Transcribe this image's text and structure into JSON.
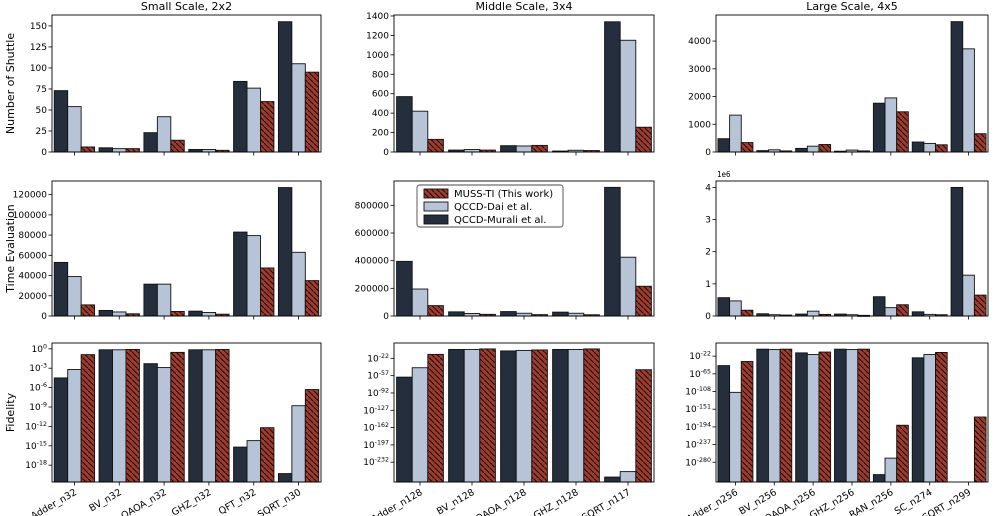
{
  "figure": {
    "column_titles": [
      "Small Scale, 2x2",
      "Middle Scale, 3x4",
      "Large Scale, 4x5"
    ],
    "row_ylabels": [
      "Number of Shuttle",
      "Time Evaluation",
      "Fidelity"
    ]
  },
  "series_style": {
    "muss_ti": {
      "color": "#a23b2e",
      "hatch": true
    },
    "qccd_dai": {
      "color": "#b7c3d6",
      "hatch": false
    },
    "qccd_murali": {
      "color": "#242e3c",
      "hatch": false
    }
  },
  "legend": {
    "host_chart": 4,
    "items": [
      {
        "key": "muss_ti",
        "label": "MUSS-TI (This work)"
      },
      {
        "key": "qccd_dai",
        "label": "QCCD-Dai et al."
      },
      {
        "key": "qccd_murali",
        "label": "QCCD-Murali et al."
      }
    ]
  },
  "chart_data": [
    {
      "id": "shuttle-small",
      "type": "bar",
      "scale": "linear",
      "title": "Small Scale, 2x2",
      "ylabel": "Number of Shuttle",
      "offset_text": "",
      "categories": [
        "Adder_n32",
        "BV_n32",
        "QAOA_n32",
        "GHZ_n32",
        "QFT_n32",
        "SQRT_n30"
      ],
      "show_xticklabels": false,
      "ylim": [
        0,
        163
      ],
      "yticks": [
        0,
        25,
        50,
        75,
        100,
        125,
        150
      ],
      "ytick_labels": [
        "0",
        "25",
        "50",
        "75",
        "100",
        "125",
        "150"
      ],
      "series": [
        {
          "key": "qccd_murali",
          "name": "QCCD-Murali et al.",
          "values": [
            73,
            5,
            23,
            3,
            84,
            155
          ]
        },
        {
          "key": "qccd_dai",
          "name": "QCCD-Dai et al.",
          "values": [
            54,
            4,
            42,
            3,
            76,
            105
          ]
        },
        {
          "key": "muss_ti",
          "name": "MUSS-TI (This work)",
          "values": [
            6,
            4,
            14,
            2,
            60,
            95
          ]
        }
      ]
    },
    {
      "id": "shuttle-middle",
      "type": "bar",
      "scale": "linear",
      "title": "Middle Scale, 3x4",
      "ylabel": "",
      "offset_text": "",
      "categories": [
        "Adder_n128",
        "BV_n128",
        "QAOA_n128",
        "GHZ_n128",
        "SQRT_n117"
      ],
      "show_xticklabels": false,
      "ylim": [
        0,
        1410
      ],
      "yticks": [
        0,
        200,
        400,
        600,
        800,
        1000,
        1200,
        1400
      ],
      "ytick_labels": [
        "0",
        "200",
        "400",
        "600",
        "800",
        "1000",
        "1200",
        "1400"
      ],
      "series": [
        {
          "key": "qccd_murali",
          "name": "QCCD-Murali et al.",
          "values": [
            570,
            20,
            65,
            10,
            1340
          ]
        },
        {
          "key": "qccd_dai",
          "name": "QCCD-Dai et al.",
          "values": [
            420,
            25,
            62,
            18,
            1150
          ]
        },
        {
          "key": "muss_ti",
          "name": "MUSS-TI (This work)",
          "values": [
            130,
            20,
            68,
            15,
            255
          ]
        }
      ]
    },
    {
      "id": "shuttle-large",
      "type": "bar",
      "scale": "linear",
      "title": "Large Scale, 4x5",
      "ylabel": "",
      "offset_text": "",
      "categories": [
        "Adder_n256",
        "BV_n256",
        "QAOA_n256",
        "GHZ_n256",
        "RAN_n256",
        "SC_n274",
        "SQRT_n299"
      ],
      "show_xticklabels": false,
      "ylim": [
        0,
        4940
      ],
      "yticks": [
        0,
        1000,
        2000,
        3000,
        4000
      ],
      "ytick_labels": [
        "0",
        "1000",
        "2000",
        "3000",
        "4000"
      ],
      "series": [
        {
          "key": "qccd_murali",
          "name": "QCCD-Murali et al.",
          "values": [
            480,
            50,
            130,
            30,
            1760,
            360,
            4700
          ]
        },
        {
          "key": "qccd_dai",
          "name": "QCCD-Dai et al.",
          "values": [
            1330,
            80,
            210,
            70,
            1950,
            310,
            3720
          ]
        },
        {
          "key": "muss_ti",
          "name": "MUSS-TI (This work)",
          "values": [
            340,
            40,
            270,
            40,
            1450,
            260,
            660
          ]
        }
      ]
    },
    {
      "id": "time-small",
      "type": "bar",
      "scale": "linear",
      "title": "",
      "ylabel": "Time Evaluation",
      "offset_text": "",
      "categories": [
        "Adder_n32",
        "BV_n32",
        "QAOA_n32",
        "GHZ_n32",
        "QFT_n32",
        "SQRT_n30"
      ],
      "show_xticklabels": false,
      "ylim": [
        0,
        133500
      ],
      "yticks": [
        0,
        20000,
        40000,
        60000,
        80000,
        100000,
        120000
      ],
      "ytick_labels": [
        "0",
        "20000",
        "40000",
        "60000",
        "80000",
        "100000",
        "120000"
      ],
      "series": [
        {
          "key": "qccd_murali",
          "name": "QCCD-Murali et al.",
          "values": [
            53000,
            5500,
            31500,
            4800,
            83000,
            127000
          ]
        },
        {
          "key": "qccd_dai",
          "name": "QCCD-Dai et al.",
          "values": [
            39000,
            4000,
            31500,
            3500,
            79500,
            63000
          ]
        },
        {
          "key": "muss_ti",
          "name": "MUSS-TI (This work)",
          "values": [
            11000,
            2200,
            4500,
            1800,
            47500,
            35000
          ]
        }
      ]
    },
    {
      "id": "time-middle",
      "type": "bar",
      "scale": "linear",
      "title": "",
      "ylabel": "",
      "offset_text": "",
      "categories": [
        "Adder_n128",
        "BV_n128",
        "QAOA_n128",
        "GHZ_n128",
        "SQRT_n117"
      ],
      "show_xticklabels": false,
      "ylim": [
        0,
        976000
      ],
      "yticks": [
        0,
        200000,
        400000,
        600000,
        800000
      ],
      "ytick_labels": [
        "0",
        "200000",
        "400000",
        "600000",
        "800000"
      ],
      "series": [
        {
          "key": "qccd_murali",
          "name": "QCCD-Murali et al.",
          "values": [
            395000,
            30000,
            32000,
            28000,
            930000
          ]
        },
        {
          "key": "qccd_dai",
          "name": "QCCD-Dai et al.",
          "values": [
            195000,
            18000,
            20000,
            20000,
            425000
          ]
        },
        {
          "key": "muss_ti",
          "name": "MUSS-TI (This work)",
          "values": [
            75000,
            12000,
            10000,
            9000,
            215000
          ]
        }
      ]
    },
    {
      "id": "time-large",
      "type": "bar",
      "scale": "linear",
      "title": "",
      "ylabel": "",
      "offset_text": "1e6",
      "categories": [
        "Adder_n256",
        "BV_n256",
        "QAOA_n256",
        "GHZ_n256",
        "RAN_n256",
        "SC_n274",
        "SQRT_n299"
      ],
      "show_xticklabels": false,
      "ylim": [
        0,
        4200000
      ],
      "yticks": [
        0,
        1000000,
        2000000,
        3000000,
        4000000
      ],
      "ytick_labels": [
        "0",
        "1",
        "2",
        "3",
        "4"
      ],
      "series": [
        {
          "key": "qccd_murali",
          "name": "QCCD-Murali et al.",
          "values": [
            570000,
            70000,
            60000,
            60000,
            600000,
            130000,
            4000000
          ]
        },
        {
          "key": "qccd_dai",
          "name": "QCCD-Dai et al.",
          "values": [
            470000,
            40000,
            150000,
            40000,
            260000,
            50000,
            1270000
          ]
        },
        {
          "key": "muss_ti",
          "name": "MUSS-TI (This work)",
          "values": [
            180000,
            30000,
            50000,
            20000,
            350000,
            40000,
            650000
          ]
        }
      ]
    },
    {
      "id": "fidelity-small",
      "type": "bar",
      "scale": "log",
      "values_are": "log10",
      "title": "",
      "ylabel": "Fidelity",
      "offset_text": "",
      "categories": [
        "Adder_n32",
        "BV_n32",
        "QAOA_n32",
        "GHZ_n32",
        "QFT_n32",
        "SQRT_n30"
      ],
      "show_xticklabels": true,
      "ylim": [
        -20.6,
        0.9
      ],
      "yticks": [
        0,
        -3,
        -6,
        -9,
        -12,
        -15,
        -18
      ],
      "ytick_labels": [
        "0",
        "-3",
        "-6",
        "-9",
        "-12",
        "-15",
        "-18"
      ],
      "series": [
        {
          "key": "qccd_murali",
          "name": "QCCD-Murali et al.",
          "values": [
            -4.5,
            -0.15,
            -2.3,
            -0.15,
            -15.2,
            -19.3
          ]
        },
        {
          "key": "qccd_dai",
          "name": "QCCD-Dai et al.",
          "values": [
            -3.2,
            -0.15,
            -2.9,
            -0.15,
            -14.2,
            -8.8
          ]
        },
        {
          "key": "muss_ti",
          "name": "MUSS-TI (This work)",
          "values": [
            -0.9,
            -0.1,
            -0.55,
            -0.1,
            -12.2,
            -6.3
          ]
        }
      ]
    },
    {
      "id": "fidelity-middle",
      "type": "bar",
      "scale": "log",
      "values_are": "log10",
      "title": "",
      "ylabel": "",
      "offset_text": "",
      "categories": [
        "Adder_n128",
        "BV_n128",
        "QAOA_n128",
        "GHZ_n128",
        "SQRT_n117"
      ],
      "show_xticklabels": true,
      "ylim": [
        -272,
        9
      ],
      "yticks": [
        -22,
        -57,
        -92,
        -127,
        -162,
        -197,
        -232
      ],
      "ytick_labels": [
        "-22",
        "-57",
        "-92",
        "-127",
        "-162",
        "-197",
        "-232"
      ],
      "series": [
        {
          "key": "qccd_murali",
          "name": "QCCD-Murali et al.",
          "values": [
            -60,
            -4,
            -7,
            -4,
            -262
          ]
        },
        {
          "key": "qccd_dai",
          "name": "QCCD-Dai et al.",
          "values": [
            -41,
            -4,
            -6,
            -4,
            -251
          ]
        },
        {
          "key": "muss_ti",
          "name": "MUSS-TI (This work)",
          "values": [
            -14,
            -3,
            -5,
            -3,
            -45
          ]
        }
      ]
    },
    {
      "id": "fidelity-large",
      "type": "bar",
      "scale": "log",
      "values_are": "log10",
      "title": "",
      "ylabel": "",
      "offset_text": "",
      "categories": [
        "Adder_n256",
        "BV_n256",
        "QAOA_n256",
        "GHZ_n256",
        "RAN_n256",
        "SC_n274",
        "SQRT_n299"
      ],
      "show_xticklabels": true,
      "ylim": [
        -328,
        10
      ],
      "yticks": [
        -22,
        -65,
        -108,
        -151,
        -194,
        -237,
        -280
      ],
      "ytick_labels": [
        "-22",
        "-65",
        "-108",
        "-151",
        "-194",
        "-237",
        "-280"
      ],
      "series": [
        {
          "key": "qccd_murali",
          "name": "QCCD-Murali et al.",
          "values": [
            -45,
            -5,
            -14,
            -5,
            -310,
            -26,
            null
          ]
        },
        {
          "key": "qccd_dai",
          "name": "QCCD-Dai et al.",
          "values": [
            -110,
            -6,
            -18,
            -6,
            -270,
            -18,
            null
          ]
        },
        {
          "key": "muss_ti",
          "name": "MUSS-TI (This work)",
          "values": [
            -35,
            -5,
            -12,
            -5,
            -190,
            -13,
            -170
          ]
        }
      ]
    }
  ]
}
